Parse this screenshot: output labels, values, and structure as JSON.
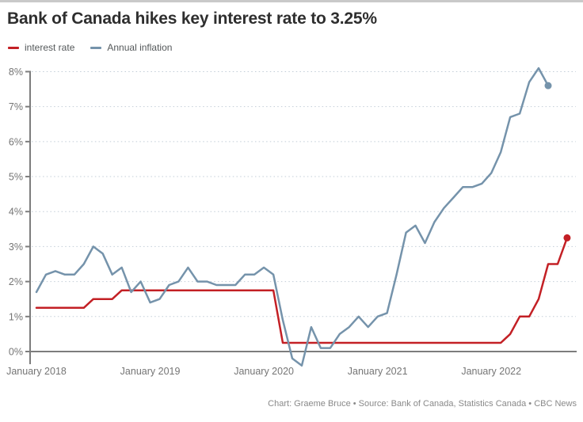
{
  "header": {
    "title": "Bank of Canada hikes key interest rate to 3.25%"
  },
  "legend": {
    "items": [
      {
        "label": "interest rate",
        "color": "#c32025"
      },
      {
        "label": "Annual inflation",
        "color": "#7593ab"
      }
    ]
  },
  "footer": {
    "credit": "Chart: Graeme Bruce • Source: Bank of Canada, Statistics Canada • CBC News"
  },
  "colors": {
    "interest_rate": "#c32025",
    "inflation": "#7593ab",
    "axis": "#7d7d7d",
    "gridline": "#c2cdd7",
    "tick_label": "#757575"
  },
  "chart_data": {
    "type": "line",
    "title": "Bank of Canada hikes key interest rate to 3.25%",
    "xlabel": "",
    "ylabel": "",
    "x_unit": "month",
    "x_start_month": "January 2018",
    "x_tick_labels": [
      "January 2018",
      "January 2019",
      "January 2020",
      "January 2021",
      "January 2022"
    ],
    "y_tick_labels": [
      "0%",
      "1%",
      "2%",
      "3%",
      "4%",
      "5%",
      "6%",
      "7%",
      "8%"
    ],
    "ylim": [
      0,
      8
    ],
    "grid": "horizontal-dotted",
    "legend_position": "top-left",
    "series": [
      {
        "name": "interest rate",
        "color": "#c32025",
        "end_dot": true,
        "end_value": 3.25,
        "values": [
          1.25,
          1.25,
          1.25,
          1.25,
          1.25,
          1.25,
          1.5,
          1.5,
          1.5,
          1.75,
          1.75,
          1.75,
          1.75,
          1.75,
          1.75,
          1.75,
          1.75,
          1.75,
          1.75,
          1.75,
          1.75,
          1.75,
          1.75,
          1.75,
          1.75,
          1.75,
          0.25,
          0.25,
          0.25,
          0.25,
          0.25,
          0.25,
          0.25,
          0.25,
          0.25,
          0.25,
          0.25,
          0.25,
          0.25,
          0.25,
          0.25,
          0.25,
          0.25,
          0.25,
          0.25,
          0.25,
          0.25,
          0.25,
          0.25,
          0.25,
          0.5,
          1.0,
          1.0,
          1.5,
          2.5,
          2.5,
          3.25
        ]
      },
      {
        "name": "Annual inflation",
        "color": "#7593ab",
        "end_dot": true,
        "end_value": 7.6,
        "values": [
          1.7,
          2.2,
          2.3,
          2.2,
          2.2,
          2.5,
          3.0,
          2.8,
          2.2,
          2.4,
          1.7,
          2.0,
          1.4,
          1.5,
          1.9,
          2.0,
          2.4,
          2.0,
          2.0,
          1.9,
          1.9,
          1.9,
          2.2,
          2.2,
          2.4,
          2.2,
          0.9,
          -0.2,
          -0.4,
          0.7,
          0.1,
          0.1,
          0.5,
          0.7,
          1.0,
          0.7,
          1.0,
          1.1,
          2.2,
          3.4,
          3.6,
          3.1,
          3.7,
          4.1,
          4.4,
          4.7,
          4.7,
          4.8,
          5.1,
          5.7,
          6.7,
          6.8,
          7.7,
          8.1,
          7.6
        ]
      }
    ]
  }
}
